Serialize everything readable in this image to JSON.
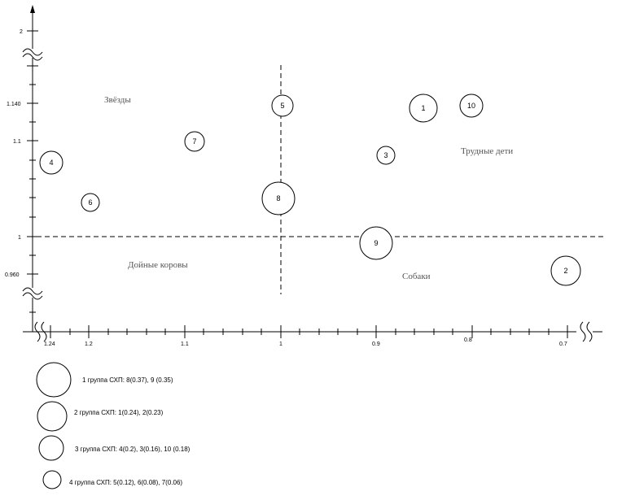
{
  "chart_data": {
    "type": "bubble",
    "x_ticks": [
      "1.24",
      "1.2",
      "1.1",
      "1",
      "0.9",
      "0.8",
      "0.7"
    ],
    "y_ticks": [
      "2",
      "1.140",
      "1.1",
      "1",
      "0.960"
    ],
    "quadrants": {
      "top_left": "Звёзды",
      "top_right": "Трудные дети",
      "bottom_left": "Дойные коровы",
      "bottom_right": "Собаки"
    },
    "points": [
      {
        "id": "1",
        "x": 0.85,
        "y": 1.138,
        "group": 2
      },
      {
        "id": "2",
        "x": 0.7,
        "y": 0.965,
        "group": 2
      },
      {
        "id": "3",
        "x": 0.89,
        "y": 1.085,
        "group": 3
      },
      {
        "id": "4",
        "x": 1.24,
        "y": 1.077,
        "group": 3
      },
      {
        "id": "5",
        "x": 1.0,
        "y": 1.14,
        "group": 4
      },
      {
        "id": "6",
        "x": 1.2,
        "y": 1.036,
        "group": 4
      },
      {
        "id": "7",
        "x": 1.1,
        "y": 1.1,
        "group": 4
      },
      {
        "id": "8",
        "x": 1.0,
        "y": 1.04,
        "group": 1
      },
      {
        "id": "9",
        "x": 0.9,
        "y": 0.993,
        "group": 1
      },
      {
        "id": "10",
        "x": 0.8,
        "y": 1.14,
        "group": 3
      }
    ],
    "legend": [
      {
        "group": 1,
        "text": "1 группа СХП: 8(0.37), 9 (0.35)"
      },
      {
        "group": 2,
        "text": "2 группа СХП: 1(0.24), 2(0.23)"
      },
      {
        "group": 3,
        "text": "3 группа СХП: 4(0.2), 3(0.16), 10 (0.18)"
      },
      {
        "group": 4,
        "text": "4 группа СХП: 5(0.12), 6(0.08), 7(0.06)"
      }
    ]
  }
}
